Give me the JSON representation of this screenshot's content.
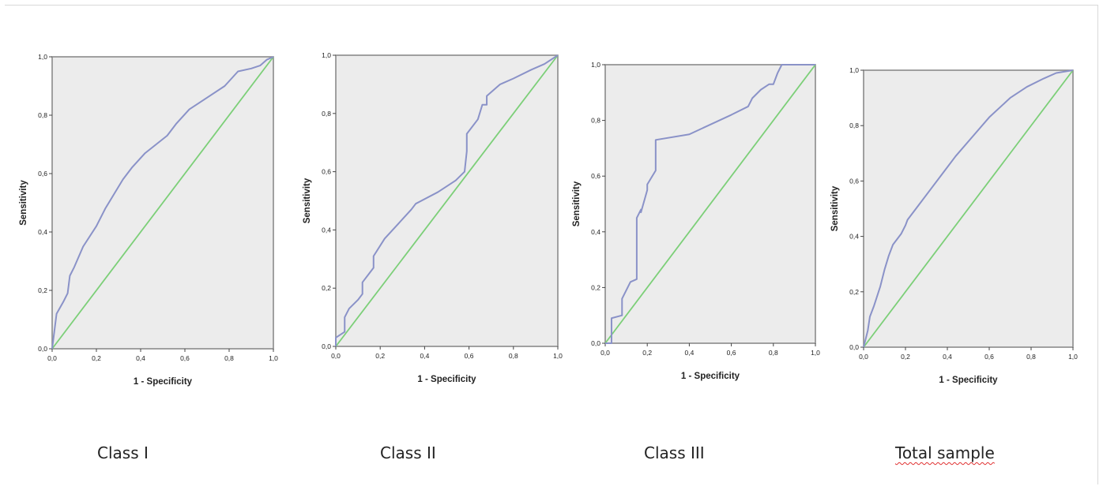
{
  "colors": {
    "plot_bg": "#ececec",
    "frame": "#8a8a8a",
    "roc_curve": "#8a92c8",
    "reference_line": "#7ccf78",
    "text": "#222222"
  },
  "chart_data": [
    {
      "type": "line",
      "xlabel": "1 - Specificity",
      "ylabel": "Sensitivity",
      "xlim": [
        0,
        1
      ],
      "ylim": [
        0,
        1
      ],
      "xticks": [
        "0,0",
        "0,2",
        "0,4",
        "0,6",
        "0,8",
        "1,0"
      ],
      "yticks": [
        "0,0",
        "0,2",
        "0,4",
        "0,6",
        "0,8",
        "1,0"
      ],
      "grid": false,
      "caption": "Class I",
      "series": [
        {
          "x": [
            0,
            0.01,
            0.02,
            0.05,
            0.07,
            0.08,
            0.1,
            0.14,
            0.2,
            0.24,
            0.28,
            0.32,
            0.36,
            0.42,
            0.52,
            0.56,
            0.62,
            0.7,
            0.78,
            0.84,
            0.9,
            0.94,
            0.97,
            1.0
          ],
          "y": [
            0,
            0.06,
            0.12,
            0.16,
            0.19,
            0.25,
            0.28,
            0.35,
            0.42,
            0.48,
            0.53,
            0.58,
            0.62,
            0.67,
            0.73,
            0.77,
            0.82,
            0.86,
            0.9,
            0.95,
            0.96,
            0.97,
            0.99,
            1.0
          ]
        },
        {
          "x": [
            0,
            1
          ],
          "y": [
            0,
            1
          ]
        }
      ]
    },
    {
      "type": "line",
      "xlabel": "1 - Specificity",
      "ylabel": "Sensitivity",
      "xlim": [
        0,
        1
      ],
      "ylim": [
        0,
        1
      ],
      "xticks": [
        "0,0",
        "0,2",
        "0,4",
        "0,6",
        "0,8",
        "1,0"
      ],
      "yticks": [
        "0,0",
        "0,2",
        "0,4",
        "0,6",
        "0,8",
        "1,0"
      ],
      "grid": false,
      "caption": "Class II",
      "series": [
        {
          "x": [
            0,
            0.0,
            0.04,
            0.04,
            0.06,
            0.1,
            0.12,
            0.12,
            0.15,
            0.17,
            0.17,
            0.22,
            0.28,
            0.34,
            0.36,
            0.46,
            0.54,
            0.58,
            0.59,
            0.59,
            0.64,
            0.66,
            0.68,
            0.68,
            0.74,
            0.8,
            0.88,
            0.94,
            1.0
          ],
          "y": [
            0,
            0.03,
            0.05,
            0.1,
            0.13,
            0.16,
            0.18,
            0.22,
            0.25,
            0.27,
            0.31,
            0.37,
            0.42,
            0.47,
            0.49,
            0.53,
            0.57,
            0.6,
            0.67,
            0.73,
            0.78,
            0.83,
            0.83,
            0.86,
            0.9,
            0.92,
            0.95,
            0.97,
            1.0
          ]
        },
        {
          "x": [
            0,
            1
          ],
          "y": [
            0,
            1
          ]
        }
      ]
    },
    {
      "type": "line",
      "xlabel": "1 - Specificity",
      "ylabel": "Sensitivity",
      "xlim": [
        0,
        1
      ],
      "ylim": [
        0,
        1
      ],
      "xticks": [
        "0,0",
        "0,2",
        "0,4",
        "0,6",
        "0,8",
        "1,0"
      ],
      "yticks": [
        "0,0",
        "0,2",
        "0,4",
        "0,6",
        "0,8",
        "1,0"
      ],
      "grid": false,
      "caption": "Class III",
      "series": [
        {
          "x": [
            0,
            0.03,
            0.03,
            0.08,
            0.08,
            0.12,
            0.15,
            0.15,
            0.17,
            0.17,
            0.2,
            0.2,
            0.24,
            0.24,
            0.4,
            0.6,
            0.68,
            0.7,
            0.74,
            0.78,
            0.8,
            0.82,
            0.84,
            1.0
          ],
          "y": [
            0,
            0.0,
            0.09,
            0.1,
            0.16,
            0.22,
            0.23,
            0.45,
            0.48,
            0.47,
            0.55,
            0.57,
            0.62,
            0.73,
            0.75,
            0.82,
            0.85,
            0.88,
            0.91,
            0.93,
            0.93,
            0.97,
            1.0,
            1.0
          ]
        },
        {
          "x": [
            0,
            1
          ],
          "y": [
            0,
            1
          ]
        }
      ]
    },
    {
      "type": "line",
      "xlabel": "1 - Specificity",
      "ylabel": "Sensitivity",
      "xlim": [
        0,
        1
      ],
      "ylim": [
        0,
        1
      ],
      "xticks": [
        "0,0",
        "0,2",
        "0,4",
        "0,6",
        "0,8",
        "1,0"
      ],
      "yticks": [
        "0,0",
        "0,2",
        "0,4",
        "0,6",
        "0,8",
        "1,0"
      ],
      "grid": false,
      "caption": "Total sample",
      "series": [
        {
          "x": [
            0,
            0.01,
            0.02,
            0.03,
            0.05,
            0.08,
            0.1,
            0.12,
            0.14,
            0.18,
            0.2,
            0.21,
            0.26,
            0.32,
            0.38,
            0.44,
            0.52,
            0.6,
            0.7,
            0.78,
            0.86,
            0.92,
            1.0
          ],
          "y": [
            0,
            0.03,
            0.06,
            0.11,
            0.15,
            0.22,
            0.28,
            0.33,
            0.37,
            0.41,
            0.44,
            0.46,
            0.51,
            0.57,
            0.63,
            0.69,
            0.76,
            0.83,
            0.9,
            0.94,
            0.97,
            0.99,
            1.0
          ]
        },
        {
          "x": [
            0,
            1
          ],
          "y": [
            0,
            1
          ]
        }
      ]
    }
  ]
}
